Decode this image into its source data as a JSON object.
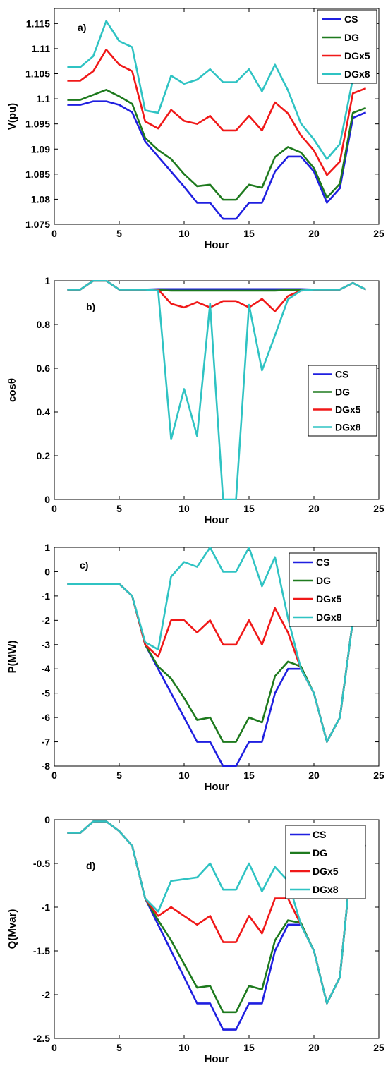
{
  "colors": {
    "CS": "#1f1fe0",
    "DG": "#1e7a1e",
    "DGx5": "#f01818",
    "DGx8": "#2fc3c3"
  },
  "chart_data": [
    {
      "type": "line",
      "panel": "a)",
      "xlabel": "Hour",
      "ylabel": "V(pu)",
      "xlim": [
        0,
        25
      ],
      "ylim": [
        1.075,
        1.118
      ],
      "xticks": [
        0,
        5,
        10,
        15,
        20,
        25
      ],
      "xtick_labels": [
        "0",
        "5",
        "10",
        "15",
        "20",
        "25"
      ],
      "yticks": [
        1.075,
        1.08,
        1.085,
        1.09,
        1.095,
        1.1,
        1.105,
        1.11,
        1.115
      ],
      "ytick_labels": [
        "1.075",
        "1.08",
        "1.085",
        "1.09",
        "1.095",
        "1.1",
        "1.105",
        "1.11",
        "1.115"
      ],
      "grid": false,
      "legend_position": "top-right",
      "x": [
        1,
        2,
        3,
        4,
        5,
        6,
        7,
        8,
        9,
        10,
        11,
        12,
        13,
        14,
        15,
        16,
        17,
        18,
        19,
        20,
        21,
        22,
        23,
        24
      ],
      "series": [
        {
          "name": "CS",
          "values": [
            1.0988,
            1.0988,
            1.0995,
            1.0995,
            1.0988,
            1.0973,
            1.0915,
            1.0885,
            1.0855,
            1.0825,
            1.0793,
            1.0793,
            1.0761,
            1.0761,
            1.0793,
            1.0793,
            1.0855,
            1.0885,
            1.0885,
            1.0855,
            1.0793,
            1.0822,
            1.0962,
            1.0973
          ]
        },
        {
          "name": "DG",
          "values": [
            1.0998,
            1.0998,
            1.1008,
            1.1018,
            1.1005,
            1.099,
            1.0922,
            1.0898,
            1.088,
            1.085,
            1.0826,
            1.0829,
            1.0799,
            1.0799,
            1.0829,
            1.0823,
            1.0884,
            1.0904,
            1.0893,
            1.0862,
            1.0803,
            1.0831,
            1.0972,
            1.0982
          ]
        },
        {
          "name": "DGx5",
          "values": [
            1.1036,
            1.1036,
            1.1055,
            1.1098,
            1.1068,
            1.1055,
            1.0955,
            1.0941,
            1.0978,
            1.0956,
            1.095,
            1.0966,
            1.0937,
            1.0937,
            1.0966,
            1.0937,
            1.0993,
            1.0971,
            1.0927,
            1.0897,
            1.0848,
            1.0875,
            1.1011,
            1.1021
          ]
        },
        {
          "name": "DGx8",
          "values": [
            1.1063,
            1.1063,
            1.1085,
            1.1155,
            1.1115,
            1.1103,
            1.0977,
            1.0972,
            1.1046,
            1.103,
            1.1038,
            1.1059,
            1.1033,
            1.1033,
            1.1059,
            1.1015,
            1.1068,
            1.1017,
            1.0951,
            1.0919,
            1.088,
            1.091,
            1.104,
            1.1049
          ]
        }
      ]
    },
    {
      "type": "line",
      "panel": "b)",
      "xlabel": "Hour",
      "ylabel": "cosθ",
      "xlim": [
        0,
        25
      ],
      "ylim": [
        0,
        1
      ],
      "xticks": [
        0,
        5,
        10,
        15,
        20,
        25
      ],
      "xtick_labels": [
        "0",
        "5",
        "10",
        "15",
        "20",
        "25"
      ],
      "yticks": [
        0,
        0.2,
        0.4,
        0.6,
        0.8,
        1
      ],
      "ytick_labels": [
        "0",
        "0.2",
        "0.4",
        "0.6",
        "0.8",
        "1"
      ],
      "grid": false,
      "legend_position": "center-right",
      "x": [
        1,
        2,
        3,
        4,
        5,
        6,
        7,
        8,
        9,
        10,
        11,
        12,
        13,
        14,
        15,
        16,
        17,
        18,
        19,
        20,
        21,
        22,
        23,
        24
      ],
      "series": [
        {
          "name": "CS",
          "values": [
            0.96,
            0.96,
            1.0,
            1.0,
            0.96,
            0.96,
            0.96,
            0.962,
            0.962,
            0.962,
            0.962,
            0.962,
            0.962,
            0.962,
            0.962,
            0.962,
            0.962,
            0.962,
            0.962,
            0.96,
            0.96,
            0.96,
            0.99,
            0.96
          ]
        },
        {
          "name": "DG",
          "values": [
            0.96,
            0.96,
            1.0,
            1.0,
            0.96,
            0.96,
            0.96,
            0.958,
            0.955,
            0.955,
            0.955,
            0.955,
            0.955,
            0.955,
            0.955,
            0.955,
            0.955,
            0.958,
            0.958,
            0.96,
            0.96,
            0.96,
            0.99,
            0.96
          ]
        },
        {
          "name": "DGx5",
          "values": [
            0.96,
            0.96,
            1.0,
            1.0,
            0.96,
            0.96,
            0.96,
            0.96,
            0.895,
            0.878,
            0.902,
            0.878,
            0.907,
            0.907,
            0.878,
            0.917,
            0.86,
            0.93,
            0.955,
            0.96,
            0.96,
            0.96,
            0.99,
            0.96
          ]
        },
        {
          "name": "DGx8",
          "values": [
            0.96,
            0.96,
            1.0,
            1.0,
            0.96,
            0.96,
            0.96,
            0.955,
            0.275,
            0.505,
            0.29,
            0.895,
            0.0,
            0.0,
            0.89,
            0.59,
            0.75,
            0.915,
            0.955,
            0.96,
            0.96,
            0.96,
            0.99,
            0.96
          ]
        }
      ]
    },
    {
      "type": "line",
      "panel": "c)",
      "xlabel": "Hour",
      "ylabel": "P(MW)",
      "xlim": [
        0,
        25
      ],
      "ylim": [
        -8,
        1
      ],
      "xticks": [
        0,
        5,
        10,
        15,
        20,
        25
      ],
      "xtick_labels": [
        "0",
        "5",
        "10",
        "15",
        "20",
        "25"
      ],
      "yticks": [
        -8,
        -7,
        -6,
        -5,
        -4,
        -3,
        -2,
        -1,
        0,
        1
      ],
      "ytick_labels": [
        "-8",
        "-7",
        "-6",
        "-5",
        "-4",
        "-3",
        "-2",
        "-1",
        "0",
        "1"
      ],
      "grid": false,
      "legend_position": "top-right",
      "x": [
        1,
        2,
        3,
        4,
        5,
        6,
        7,
        8,
        9,
        10,
        11,
        12,
        13,
        14,
        15,
        16,
        17,
        18,
        19,
        20,
        21,
        22,
        23,
        24
      ],
      "series": [
        {
          "name": "CS",
          "values": [
            -0.5,
            -0.5,
            -0.5,
            -0.5,
            -0.5,
            -1.0,
            -3.0,
            -4.0,
            -5.0,
            -6.0,
            -7.0,
            -7.0,
            -8.0,
            -8.0,
            -7.0,
            -7.0,
            -5.0,
            -4.0,
            -4.0,
            -5.0,
            -7.0,
            -6.0,
            -2.0,
            -1.0
          ]
        },
        {
          "name": "DG",
          "values": [
            -0.5,
            -0.5,
            -0.5,
            -0.5,
            -0.5,
            -1.0,
            -3.0,
            -3.9,
            -4.4,
            -5.2,
            -6.1,
            -6.0,
            -7.0,
            -7.0,
            -6.0,
            -6.2,
            -4.3,
            -3.7,
            -3.9,
            -5.0,
            -7.0,
            -6.0,
            -2.0,
            -1.0
          ]
        },
        {
          "name": "DGx5",
          "values": [
            -0.5,
            -0.5,
            -0.5,
            -0.5,
            -0.5,
            -1.0,
            -3.0,
            -3.5,
            -2.0,
            -2.0,
            -2.5,
            -2.0,
            -3.0,
            -3.0,
            -2.0,
            -3.0,
            -1.5,
            -2.5,
            -4.0,
            -5.0,
            -7.0,
            -6.0,
            -2.0,
            -1.0
          ]
        },
        {
          "name": "DGx8",
          "values": [
            -0.5,
            -0.5,
            -0.5,
            -0.5,
            -0.5,
            -1.0,
            -2.9,
            -3.2,
            -0.2,
            0.4,
            0.2,
            1.0,
            0.0,
            0.0,
            1.0,
            -0.6,
            0.6,
            -1.9,
            -4.0,
            -5.0,
            -7.0,
            -6.0,
            -2.0,
            -1.0
          ]
        }
      ]
    },
    {
      "type": "line",
      "panel": "d)",
      "xlabel": "Hour",
      "ylabel": "Q(Mvar)",
      "xlim": [
        0,
        25
      ],
      "ylim": [
        -2.5,
        0
      ],
      "xticks": [
        0,
        5,
        10,
        15,
        20,
        25
      ],
      "xtick_labels": [
        "0",
        "5",
        "10",
        "15",
        "20",
        "25"
      ],
      "yticks": [
        -2.5,
        -2,
        -1.5,
        -1,
        -0.5,
        0
      ],
      "ytick_labels": [
        "-2.5",
        "-2",
        "-1.5",
        "-1",
        "-0.5",
        "0"
      ],
      "grid": false,
      "legend_position": "top-right",
      "x": [
        1,
        2,
        3,
        4,
        5,
        6,
        7,
        8,
        9,
        10,
        11,
        12,
        13,
        14,
        15,
        16,
        17,
        18,
        19,
        20,
        21,
        22,
        23,
        24
      ],
      "series": [
        {
          "name": "CS",
          "values": [
            -0.15,
            -0.15,
            -0.02,
            -0.02,
            -0.13,
            -0.3,
            -0.9,
            -1.2,
            -1.5,
            -1.8,
            -2.1,
            -2.1,
            -2.4,
            -2.4,
            -2.1,
            -2.1,
            -1.5,
            -1.2,
            -1.2,
            -1.5,
            -2.1,
            -1.8,
            -0.3,
            -0.3
          ]
        },
        {
          "name": "DG",
          "values": [
            -0.15,
            -0.15,
            -0.02,
            -0.02,
            -0.13,
            -0.3,
            -0.9,
            -1.15,
            -1.38,
            -1.65,
            -1.92,
            -1.9,
            -2.2,
            -2.2,
            -1.9,
            -1.94,
            -1.38,
            -1.15,
            -1.18,
            -1.5,
            -2.1,
            -1.8,
            -0.3,
            -0.3
          ]
        },
        {
          "name": "DGx5",
          "values": [
            -0.15,
            -0.15,
            -0.02,
            -0.02,
            -0.13,
            -0.3,
            -0.9,
            -1.1,
            -1.0,
            -1.1,
            -1.2,
            -1.1,
            -1.4,
            -1.4,
            -1.1,
            -1.3,
            -0.9,
            -0.9,
            -1.2,
            -1.5,
            -2.1,
            -1.8,
            -0.3,
            -0.3
          ]
        },
        {
          "name": "DGx8",
          "values": [
            -0.15,
            -0.15,
            -0.02,
            -0.02,
            -0.13,
            -0.3,
            -0.9,
            -1.05,
            -0.7,
            -0.68,
            -0.66,
            -0.5,
            -0.8,
            -0.8,
            -0.5,
            -0.82,
            -0.54,
            -0.7,
            -1.2,
            -1.5,
            -2.1,
            -1.8,
            -0.3,
            -0.3
          ]
        }
      ]
    }
  ]
}
